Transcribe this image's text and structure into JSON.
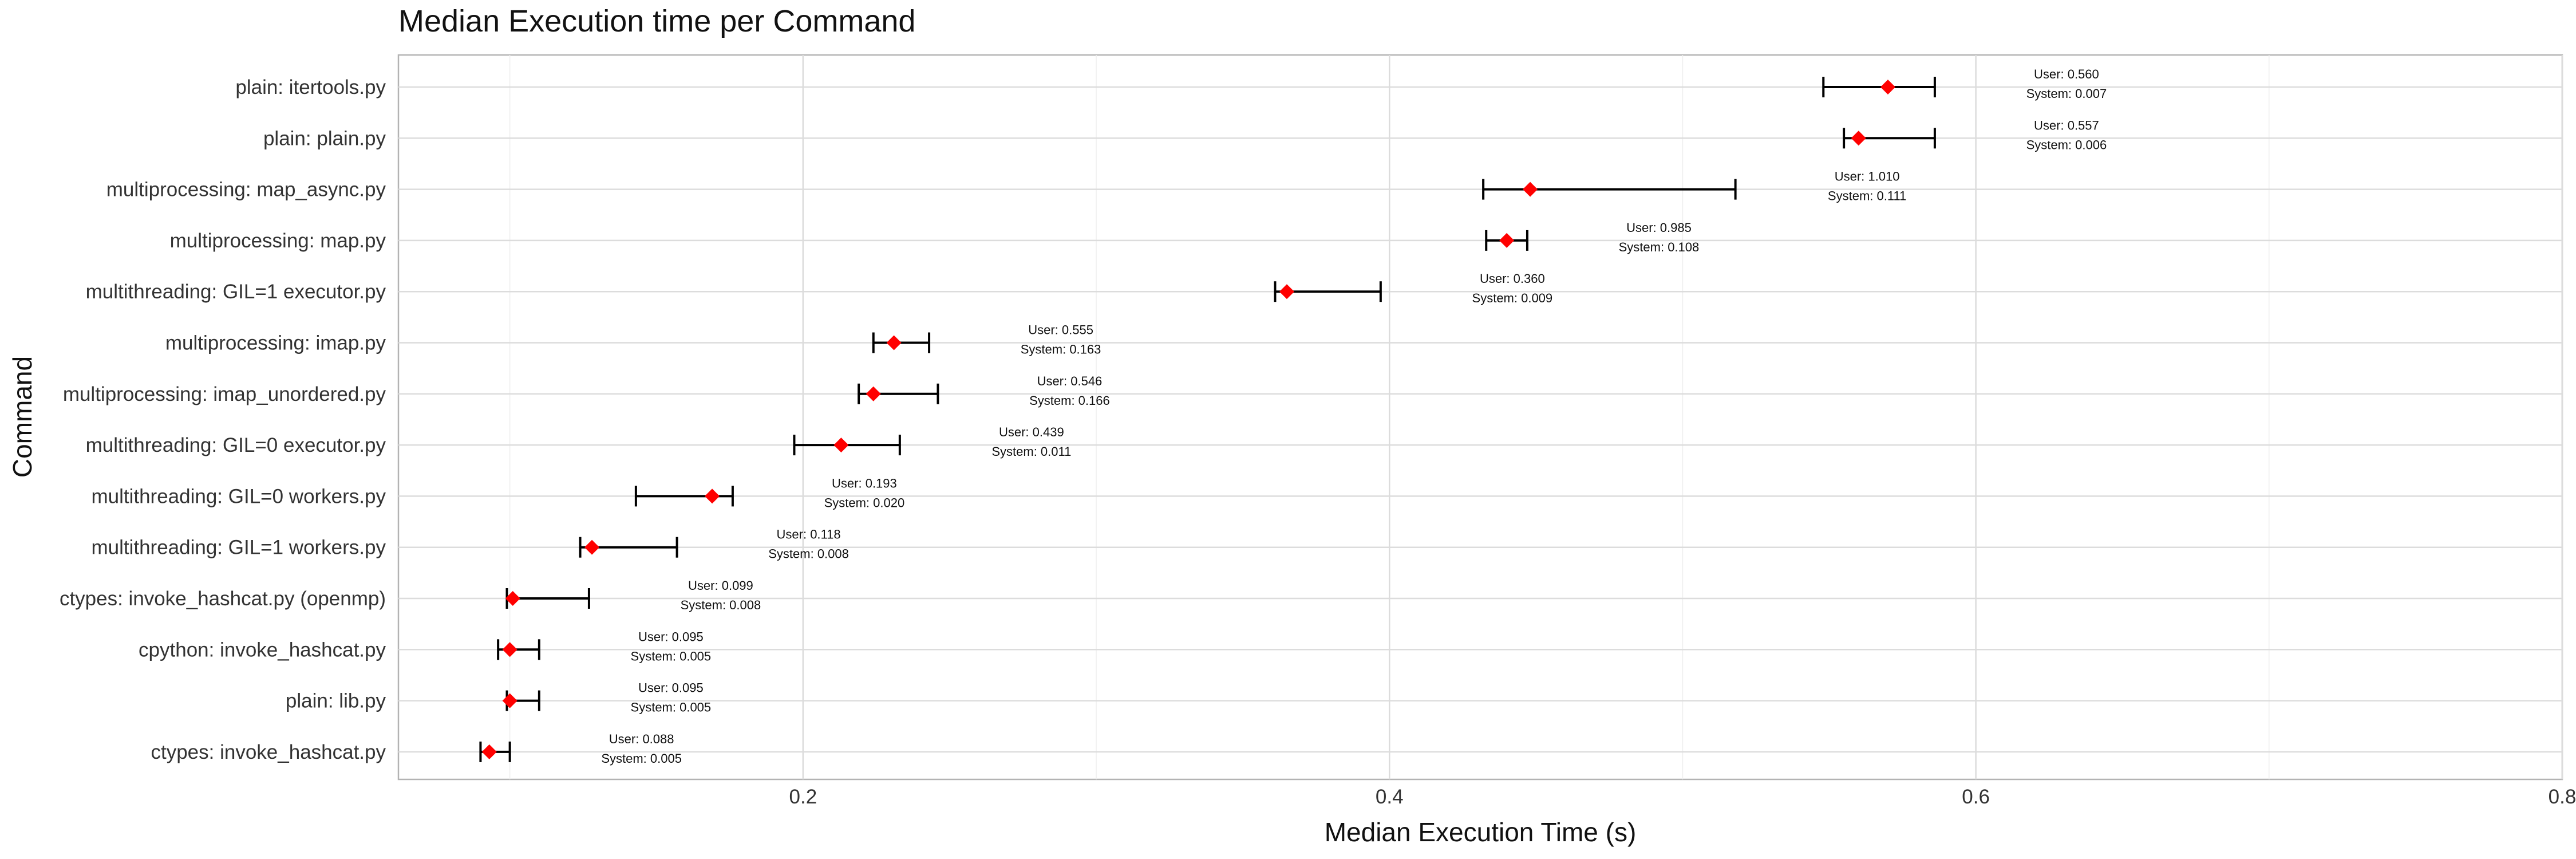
{
  "chart_data": {
    "type": "scatter",
    "title": "Median Execution time per Command",
    "xlabel": "Median Execution Time (s)",
    "ylabel": "Command",
    "xlim": [
      0.062,
      0.8
    ],
    "xticks": [
      0.2,
      0.4,
      0.6,
      0.8
    ],
    "xtick_labels": [
      "0.2",
      "0.4",
      "0.6",
      "0.8"
    ],
    "grid": true,
    "marker": "diamond",
    "marker_color": "#ff0000",
    "errorbar_color": "#000000",
    "annotation_user_prefix": "User: ",
    "annotation_system_prefix": "System: ",
    "points": [
      {
        "command": "plain: itertools.py",
        "median": 0.57,
        "min": 0.548,
        "max": 0.586,
        "user": "0.560",
        "system": "0.007"
      },
      {
        "command": "plain: plain.py",
        "median": 0.56,
        "min": 0.555,
        "max": 0.586,
        "user": "0.557",
        "system": "0.006"
      },
      {
        "command": "multiprocessing: map_async.py",
        "median": 0.448,
        "min": 0.432,
        "max": 0.518,
        "user": "1.010",
        "system": "0.111"
      },
      {
        "command": "multiprocessing: map.py",
        "median": 0.44,
        "min": 0.433,
        "max": 0.447,
        "user": "0.985",
        "system": "0.108"
      },
      {
        "command": "multithreading: GIL=1 executor.py",
        "median": 0.365,
        "min": 0.361,
        "max": 0.397,
        "user": "0.360",
        "system": "0.009"
      },
      {
        "command": "multiprocessing: imap.py",
        "median": 0.231,
        "min": 0.224,
        "max": 0.243,
        "user": "0.555",
        "system": "0.163"
      },
      {
        "command": "multiprocessing: imap_unordered.py",
        "median": 0.224,
        "min": 0.219,
        "max": 0.246,
        "user": "0.546",
        "system": "0.166"
      },
      {
        "command": "multithreading: GIL=0 executor.py",
        "median": 0.213,
        "min": 0.197,
        "max": 0.233,
        "user": "0.439",
        "system": "0.011"
      },
      {
        "command": "multithreading: GIL=0 workers.py",
        "median": 0.169,
        "min": 0.143,
        "max": 0.176,
        "user": "0.193",
        "system": "0.020"
      },
      {
        "command": "multithreading: GIL=1 workers.py",
        "median": 0.128,
        "min": 0.124,
        "max": 0.157,
        "user": "0.118",
        "system": "0.008"
      },
      {
        "command": "ctypes: invoke_hashcat.py (openmp)",
        "median": 0.101,
        "min": 0.099,
        "max": 0.127,
        "user": "0.099",
        "system": "0.008"
      },
      {
        "command": "cpython: invoke_hashcat.py",
        "median": 0.1,
        "min": 0.096,
        "max": 0.11,
        "user": "0.095",
        "system": "0.005"
      },
      {
        "command": "plain: lib.py",
        "median": 0.1,
        "min": 0.099,
        "max": 0.11,
        "user": "0.095",
        "system": "0.005"
      },
      {
        "command": "ctypes: invoke_hashcat.py",
        "median": 0.093,
        "min": 0.09,
        "max": 0.1,
        "user": "0.088",
        "system": "0.005"
      }
    ]
  }
}
